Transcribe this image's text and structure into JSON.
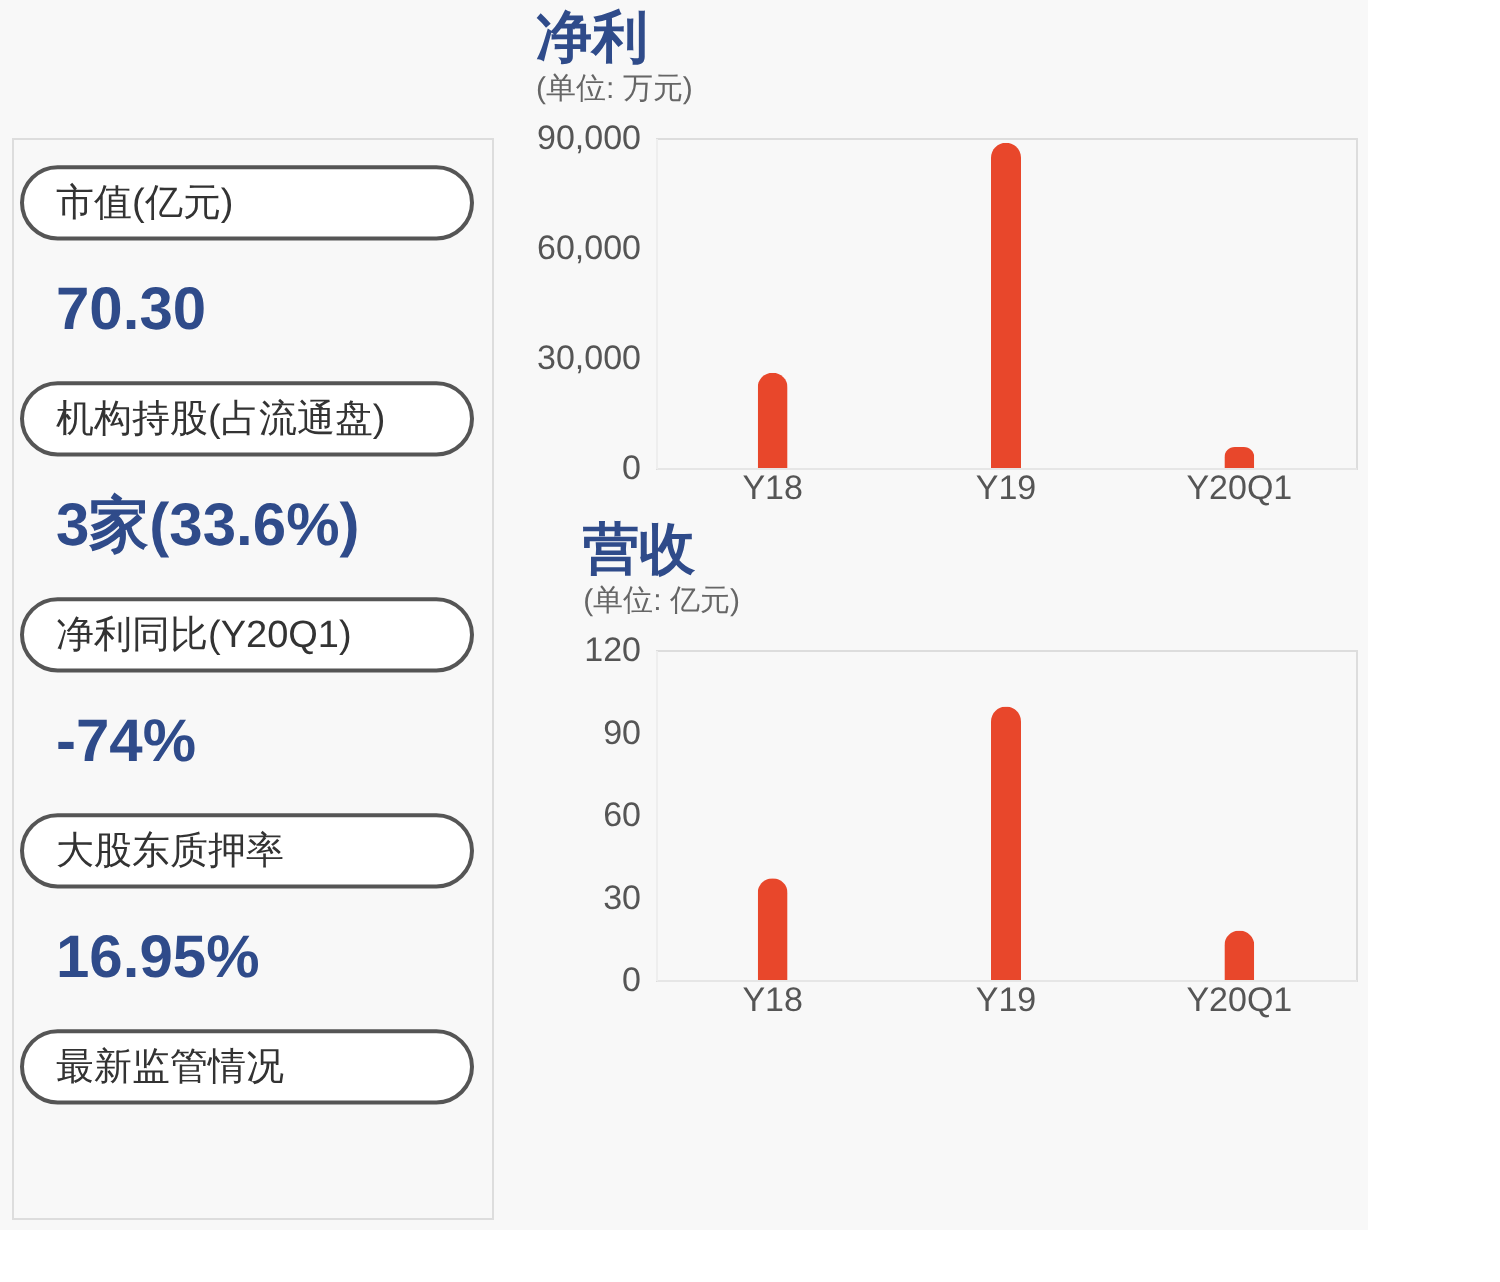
{
  "chart_data": [
    {
      "type": "other",
      "annotations": [
        "市值(亿元)",
        "70.30",
        "机构持股(占流通盘)",
        "3家(33.6%)",
        "净利同比(Y20Q1)",
        "-74%",
        "大股东质押率",
        "16.95%",
        "最新监管情况"
      ]
    },
    {
      "type": "bar",
      "title": "净利",
      "subtitle": "(单位: 万元)",
      "categories": [
        "Y18",
        "Y19",
        "Y20Q1"
      ],
      "values": [
        26000,
        88700,
        5700
      ],
      "color": "#e8472b",
      "ylim": [
        0,
        90000
      ],
      "yticks": [
        0,
        {
          "value": 30000,
          "label": "30,000"
        },
        {
          "value": 60000,
          "label": "60,000"
        },
        {
          "value": 90000,
          "label": "90,000"
        }
      ],
      "grid": false
    },
    {
      "type": "bar",
      "title": "营收",
      "subtitle": "(单位: 亿元)",
      "categories": [
        "Y18",
        "Y19",
        "Y20Q1"
      ],
      "values": [
        37,
        99.5,
        18
      ],
      "color": "#e8472b",
      "ylim": [
        0,
        120
      ],
      "yticks": [
        0,
        30,
        60,
        90,
        120
      ],
      "grid": false
    }
  ]
}
